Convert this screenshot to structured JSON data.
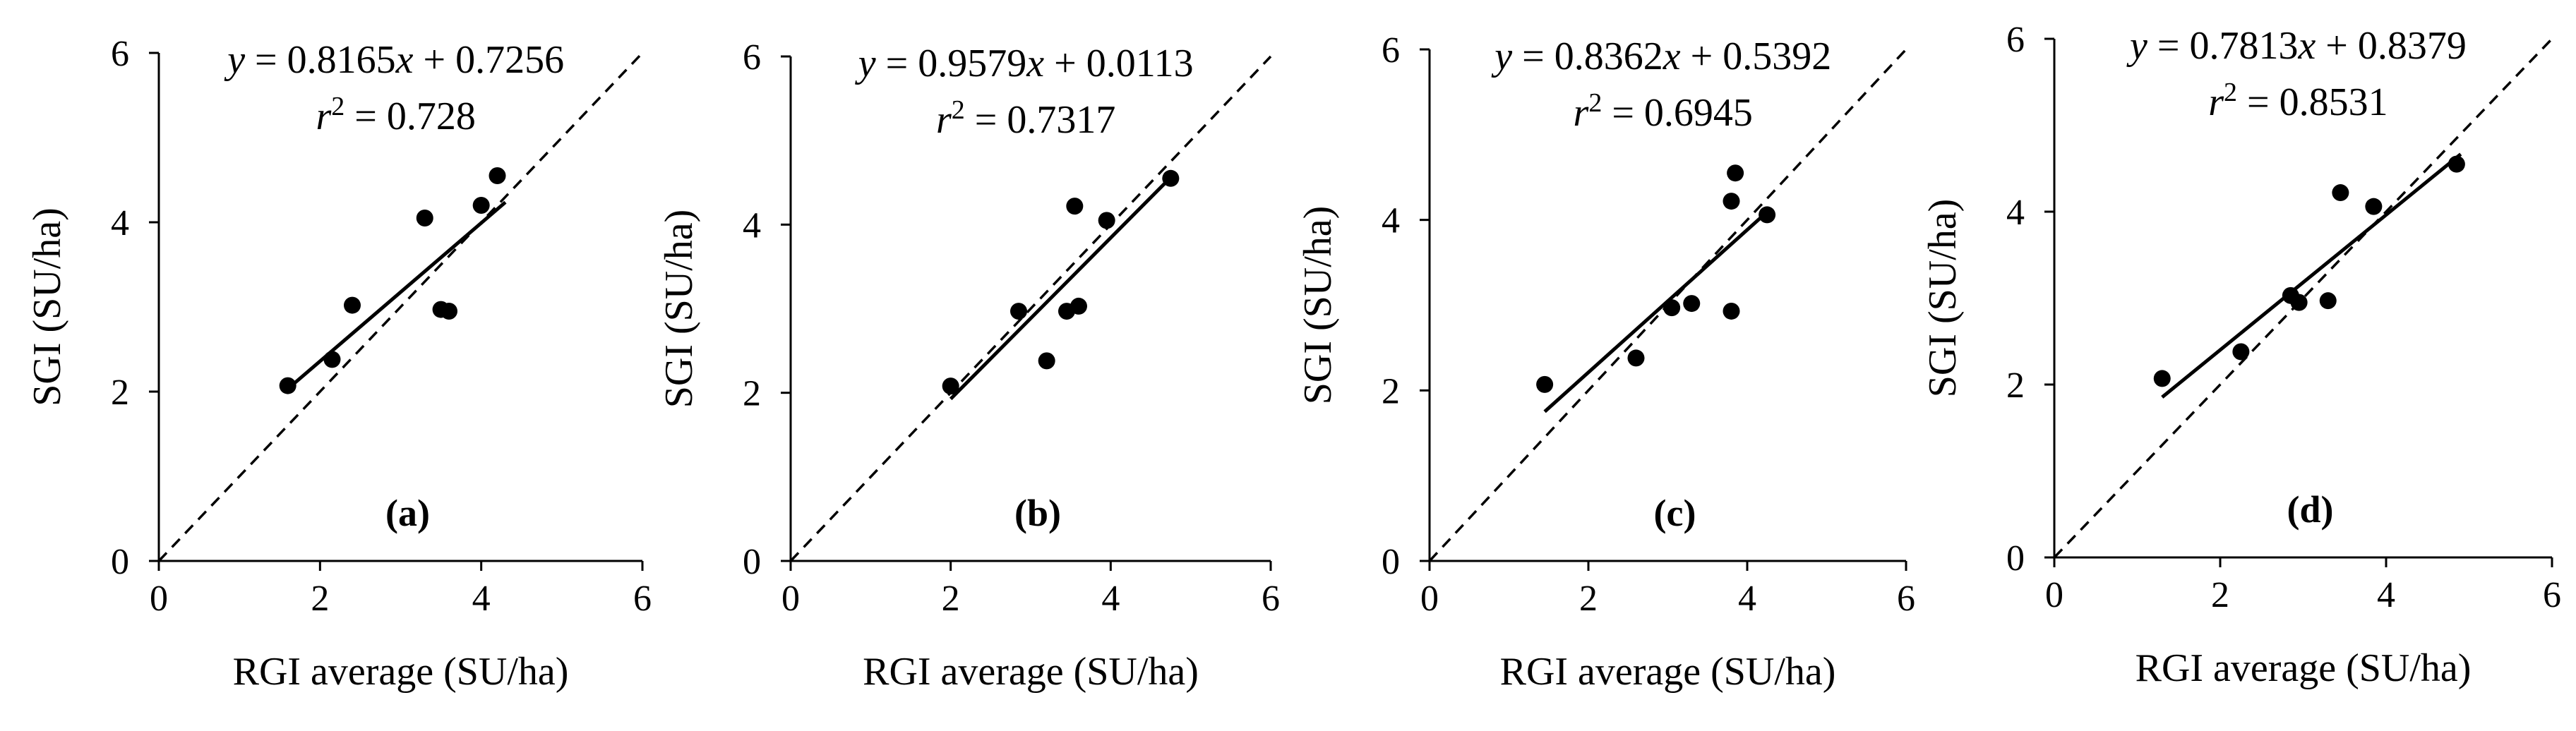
{
  "chart_data": [
    {
      "type": "scatter",
      "panel_label": "(a)",
      "xlabel": "RGI average (SU/ha)",
      "ylabel": "SGI (SU/ha)",
      "xlim": [
        0,
        6
      ],
      "ylim": [
        0,
        6
      ],
      "xticks": [
        "0",
        "2",
        "4",
        "6"
      ],
      "yticks": [
        "0",
        "2",
        "4",
        "6"
      ],
      "equation": {
        "lhs": "y",
        "coef": "0.8165",
        "var": "x",
        "intercept": "0.7256"
      },
      "r2": {
        "symbol": "r",
        "sup": "2",
        "value": "0.728"
      },
      "fit": {
        "slope": 0.8165,
        "intercept": 0.7256,
        "x_range": [
          1.6,
          4.3
        ]
      },
      "points": [
        {
          "x": 1.6,
          "y": 2.07
        },
        {
          "x": 2.15,
          "y": 2.38
        },
        {
          "x": 2.4,
          "y": 3.02
        },
        {
          "x": 3.3,
          "y": 4.05
        },
        {
          "x": 3.5,
          "y": 2.97
        },
        {
          "x": 3.6,
          "y": 2.95
        },
        {
          "x": 4.0,
          "y": 4.2
        },
        {
          "x": 4.2,
          "y": 4.55
        }
      ],
      "identity_line": true
    },
    {
      "type": "scatter",
      "panel_label": "(b)",
      "xlabel": "RGI average (SU/ha)",
      "ylabel": "SGI (SU/ha)",
      "xlim": [
        0,
        6
      ],
      "ylim": [
        0,
        6
      ],
      "xticks": [
        "0",
        "2",
        "4",
        "6"
      ],
      "yticks": [
        "0",
        "2",
        "4",
        "6"
      ],
      "equation": {
        "lhs": "y",
        "coef": "0.9579",
        "var": "x",
        "intercept": "0.0113"
      },
      "r2": {
        "symbol": "r",
        "sup": "2",
        "value": "0.7317"
      },
      "fit": {
        "slope": 0.9579,
        "intercept": 0.0113,
        "x_range": [
          2.0,
          4.75
        ]
      },
      "points": [
        {
          "x": 2.0,
          "y": 2.08
        },
        {
          "x": 2.85,
          "y": 2.97
        },
        {
          "x": 3.2,
          "y": 2.38
        },
        {
          "x": 3.45,
          "y": 2.97
        },
        {
          "x": 3.55,
          "y": 4.22
        },
        {
          "x": 3.6,
          "y": 3.03
        },
        {
          "x": 3.95,
          "y": 4.05
        },
        {
          "x": 4.75,
          "y": 4.55
        }
      ],
      "identity_line": true
    },
    {
      "type": "scatter",
      "panel_label": "(c)",
      "xlabel": "RGI average (SU/ha)",
      "ylabel": "SGI (SU/ha)",
      "xlim": [
        0,
        6
      ],
      "ylim": [
        0,
        6
      ],
      "xticks": [
        "0",
        "2",
        "4",
        "6"
      ],
      "yticks": [
        "0",
        "2",
        "4",
        "6"
      ],
      "equation": {
        "lhs": "y",
        "coef": "0.8362",
        "var": "x",
        "intercept": "0.5392"
      },
      "r2": {
        "symbol": "r",
        "sup": "2",
        "value": "0.6945"
      },
      "fit": {
        "slope": 0.8362,
        "intercept": 0.5392,
        "x_range": [
          1.45,
          4.2
        ]
      },
      "points": [
        {
          "x": 1.45,
          "y": 2.07
        },
        {
          "x": 2.6,
          "y": 2.38
        },
        {
          "x": 3.05,
          "y": 2.97
        },
        {
          "x": 3.3,
          "y": 3.02
        },
        {
          "x": 3.8,
          "y": 2.93
        },
        {
          "x": 3.8,
          "y": 4.22
        },
        {
          "x": 3.85,
          "y": 4.55
        },
        {
          "x": 4.25,
          "y": 4.06
        }
      ],
      "identity_line": true
    },
    {
      "type": "scatter",
      "panel_label": "(d)",
      "xlabel": "RGI average (SU/ha)",
      "ylabel": "SGI (SU/ha)",
      "xlim": [
        0,
        6
      ],
      "ylim": [
        0,
        6
      ],
      "xticks": [
        "0",
        "2",
        "4",
        "6"
      ],
      "yticks": [
        "0",
        "2",
        "4",
        "6"
      ],
      "equation": {
        "lhs": "y",
        "coef": "0.7813",
        "var": "x",
        "intercept": "0.8379"
      },
      "r2": {
        "symbol": "r",
        "sup": "2",
        "value": "0.8531"
      },
      "fit": {
        "slope": 0.7813,
        "intercept": 0.8379,
        "x_range": [
          1.3,
          4.9
        ]
      },
      "points": [
        {
          "x": 1.3,
          "y": 2.07
        },
        {
          "x": 2.25,
          "y": 2.38
        },
        {
          "x": 2.85,
          "y": 3.03
        },
        {
          "x": 2.95,
          "y": 2.95
        },
        {
          "x": 3.3,
          "y": 2.97
        },
        {
          "x": 3.45,
          "y": 4.22
        },
        {
          "x": 3.85,
          "y": 4.06
        },
        {
          "x": 4.85,
          "y": 4.55
        }
      ],
      "identity_line": true
    }
  ]
}
